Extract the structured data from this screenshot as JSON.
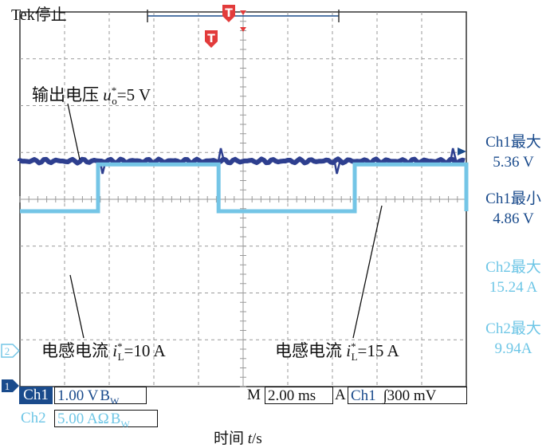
{
  "header": {
    "status": "Tek停止"
  },
  "annotations": {
    "voltage_prefix": "输出电压",
    "voltage_var": "u",
    "voltage_sup": "*",
    "voltage_sub": "o",
    "voltage_val": "=5 V",
    "current1_prefix": "电感电流",
    "current1_var": "i",
    "current1_sup": "*",
    "current1_sub": "L",
    "current1_val": "=10 A",
    "current2_prefix": "电感电流",
    "current2_var": "i",
    "current2_sup": "*",
    "current2_sub": "L",
    "current2_val": "=15 A"
  },
  "measurements": {
    "ch1_max_label": "Ch1最大",
    "ch1_max_value": "5.36 V",
    "ch1_min_label": "Ch1最小",
    "ch1_min_value": "4.86 V",
    "ch2_max_label": "Ch2最大",
    "ch2_max_value": "15.24 A",
    "ch2_max2_label": "Ch2最大",
    "ch2_max2_value": "9.94A"
  },
  "footer": {
    "ch1_label": "Ch1",
    "ch1_scale": "1.00 V",
    "ch2_label": "Ch2",
    "ch2_scale": "5.00 AΩ",
    "bw": "B",
    "bw_sub": "W",
    "m_label": "M",
    "timebase": "2.00 ms",
    "trig_source_prefix": "A",
    "trig_ch": "Ch1",
    "trig_level": "∫300 mV",
    "xlabel_prefix": "时间 ",
    "xlabel_var": "t",
    "xlabel_unit": "/s"
  },
  "markers": {
    "trigger": "T",
    "ch1_marker": "1",
    "ch2_marker": "2"
  },
  "colors": {
    "ch1": "#2e3f8f",
    "ch2": "#74c5e6",
    "grid": "#9a9a9a",
    "trigger": "#e23b3b"
  },
  "chart_data": {
    "type": "line",
    "x_divisions": 10,
    "y_divisions": 8,
    "series": [
      {
        "name": "Ch1",
        "shape": "flat with small spikes",
        "level_div": 1.0,
        "spike_div": [
          1.85,
          4.5,
          7.1,
          9.7
        ],
        "x": [
          0,
          10
        ],
        "y": [
          5.0,
          5.0
        ]
      },
      {
        "name": "Ch2",
        "shape": "square",
        "x": [
          0,
          1.75,
          1.75,
          4.45,
          4.45,
          7.5,
          7.5,
          10.2,
          10.2,
          10
        ],
        "y": [
          10,
          10,
          15,
          15,
          10,
          10,
          15,
          15,
          10,
          10
        ]
      }
    ]
  }
}
